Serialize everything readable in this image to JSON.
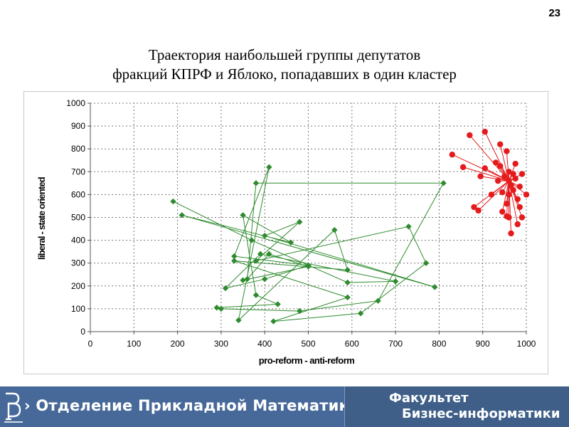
{
  "slide": {
    "number": "23",
    "title_line1": "Траектория наибольшей группы депутатов",
    "title_line2": "фракций КПРФ и Яблоко, попадавших в один кластер"
  },
  "footer": {
    "department": "Отделение Прикладной Математики",
    "chevron": "›",
    "faculty_line1": "Факультет",
    "faculty_line2": "Бизнес-информатики",
    "colors": {
      "left": "#47699a",
      "right": "#3f5f88"
    }
  },
  "chart_data": {
    "type": "line",
    "xlabel": "pro-reform - anti-reform",
    "ylabel": "liberal - state oriented",
    "xlim": [
      0,
      1000
    ],
    "ylim": [
      0,
      1000
    ],
    "x_ticks": [
      0,
      100,
      200,
      300,
      400,
      500,
      600,
      700,
      800,
      900,
      1000
    ],
    "y_ticks": [
      0,
      100,
      200,
      300,
      400,
      500,
      600,
      700,
      800,
      900,
      1000
    ],
    "grid": true,
    "series": [
      {
        "color": "#2e8b2e",
        "marker": "diamond",
        "style": "path",
        "points": [
          [
            190,
            570
          ],
          [
            370,
            400
          ],
          [
            590,
            215
          ],
          [
            700,
            220
          ],
          [
            390,
            340
          ],
          [
            310,
            190
          ],
          [
            400,
            230
          ],
          [
            500,
            290
          ],
          [
            330,
            330
          ],
          [
            410,
            720
          ],
          [
            340,
            50
          ],
          [
            560,
            445
          ],
          [
            590,
            270
          ],
          [
            330,
            310
          ],
          [
            590,
            150
          ],
          [
            420,
            45
          ],
          [
            620,
            80
          ],
          [
            770,
            300
          ],
          [
            730,
            460
          ],
          [
            380,
            310
          ],
          [
            480,
            480
          ],
          [
            400,
            420
          ],
          [
            790,
            195
          ],
          [
            210,
            510
          ],
          [
            460,
            390
          ],
          [
            350,
            510
          ],
          [
            380,
            160
          ],
          [
            430,
            120
          ],
          [
            290,
            105
          ],
          [
            300,
            100
          ],
          [
            480,
            90
          ],
          [
            660,
            135
          ],
          [
            810,
            650
          ],
          [
            380,
            650
          ],
          [
            360,
            230
          ],
          [
            410,
            340
          ],
          [
            500,
            285
          ],
          [
            350,
            225
          ]
        ]
      },
      {
        "color": "#e41a1c",
        "marker": "circle",
        "style": "star",
        "center": [
          960,
          660
        ],
        "points": [
          [
            870,
            860
          ],
          [
            905,
            875
          ],
          [
            830,
            775
          ],
          [
            855,
            720
          ],
          [
            905,
            715
          ],
          [
            940,
            820
          ],
          [
            955,
            790
          ],
          [
            975,
            735
          ],
          [
            990,
            690
          ],
          [
            930,
            740
          ],
          [
            895,
            680
          ],
          [
            880,
            545
          ],
          [
            890,
            530
          ],
          [
            920,
            600
          ],
          [
            935,
            660
          ],
          [
            945,
            610
          ],
          [
            955,
            560
          ],
          [
            960,
            700
          ],
          [
            965,
            640
          ],
          [
            970,
            620
          ],
          [
            975,
            670
          ],
          [
            980,
            580
          ],
          [
            985,
            545
          ],
          [
            990,
            500
          ],
          [
            960,
            500
          ],
          [
            965,
            430
          ],
          [
            980,
            470
          ],
          [
            955,
            505
          ],
          [
            945,
            525
          ],
          [
            985,
            635
          ],
          [
            1000,
            600
          ],
          [
            950,
            680
          ],
          [
            940,
            725
          ],
          [
            970,
            690
          ],
          [
            960,
            600
          ]
        ]
      }
    ]
  }
}
